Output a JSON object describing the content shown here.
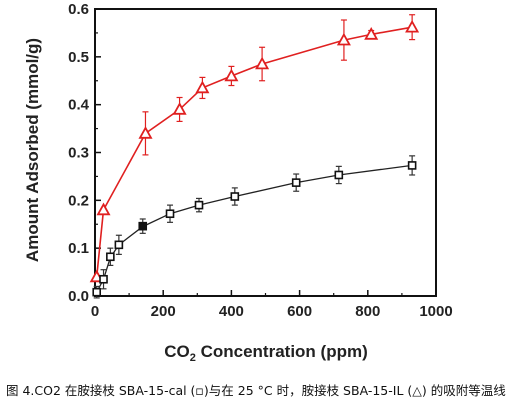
{
  "chart_data": {
    "type": "scatter",
    "xlabel_main": "CO",
    "xlabel_sub": "2",
    "xlabel_rest": " Concentration (ppm)",
    "ylabel": "Amount Adsorbed (mmol/g)",
    "xlim": [
      0,
      1000
    ],
    "ylim": [
      0.0,
      0.6
    ],
    "xticks": [
      "0",
      "200",
      "400",
      "600",
      "800",
      "1000"
    ],
    "yticks": [
      "0.0",
      "0.1",
      "0.2",
      "0.3",
      "0.4",
      "0.5",
      "0.6"
    ],
    "grid": false,
    "series": [
      {
        "marker": "triangle",
        "color": "#e02020",
        "line": true,
        "points": [
          {
            "x": 5,
            "y": 0.04,
            "err": 0.0
          },
          {
            "x": 25,
            "y": 0.18,
            "err": 0.0
          },
          {
            "x": 148,
            "y": 0.34,
            "err": 0.045
          },
          {
            "x": 248,
            "y": 0.39,
            "err": 0.025
          },
          {
            "x": 315,
            "y": 0.435,
            "err": 0.022
          },
          {
            "x": 400,
            "y": 0.46,
            "err": 0.02
          },
          {
            "x": 490,
            "y": 0.485,
            "err": 0.035
          },
          {
            "x": 730,
            "y": 0.535,
            "err": 0.042
          },
          {
            "x": 810,
            "y": 0.547,
            "err": 0.008
          },
          {
            "x": 930,
            "y": 0.562,
            "err": 0.026
          }
        ]
      },
      {
        "marker": "square",
        "color": "#111111",
        "line": false,
        "fit": [
          [
            5,
            0.008
          ],
          [
            25,
            0.035
          ],
          [
            45,
            0.08
          ],
          [
            70,
            0.107
          ],
          [
            140,
            0.145
          ],
          [
            220,
            0.172
          ],
          [
            305,
            0.19
          ],
          [
            410,
            0.208
          ],
          [
            590,
            0.237
          ],
          [
            715,
            0.253
          ],
          [
            930,
            0.273
          ]
        ],
        "points": [
          {
            "x": 5,
            "y": 0.008,
            "err": 0.012
          },
          {
            "x": 25,
            "y": 0.035,
            "err": 0.02
          },
          {
            "x": 45,
            "y": 0.082,
            "err": 0.018
          },
          {
            "x": 70,
            "y": 0.107,
            "err": 0.02
          },
          {
            "x": 140,
            "y": 0.146,
            "err": 0.015
          },
          {
            "x": 220,
            "y": 0.172,
            "err": 0.018
          },
          {
            "x": 305,
            "y": 0.19,
            "err": 0.014
          },
          {
            "x": 410,
            "y": 0.208,
            "err": 0.018
          },
          {
            "x": 590,
            "y": 0.237,
            "err": 0.018
          },
          {
            "x": 715,
            "y": 0.253,
            "err": 0.018
          },
          {
            "x": 930,
            "y": 0.273,
            "err": 0.02
          }
        ]
      }
    ]
  },
  "caption": "图 4.CO2 在胺接枝  SBA-15-cal (▫)与在 25 °C 时，胺接枝  SBA-15-IL (△)  的吸附等温线"
}
